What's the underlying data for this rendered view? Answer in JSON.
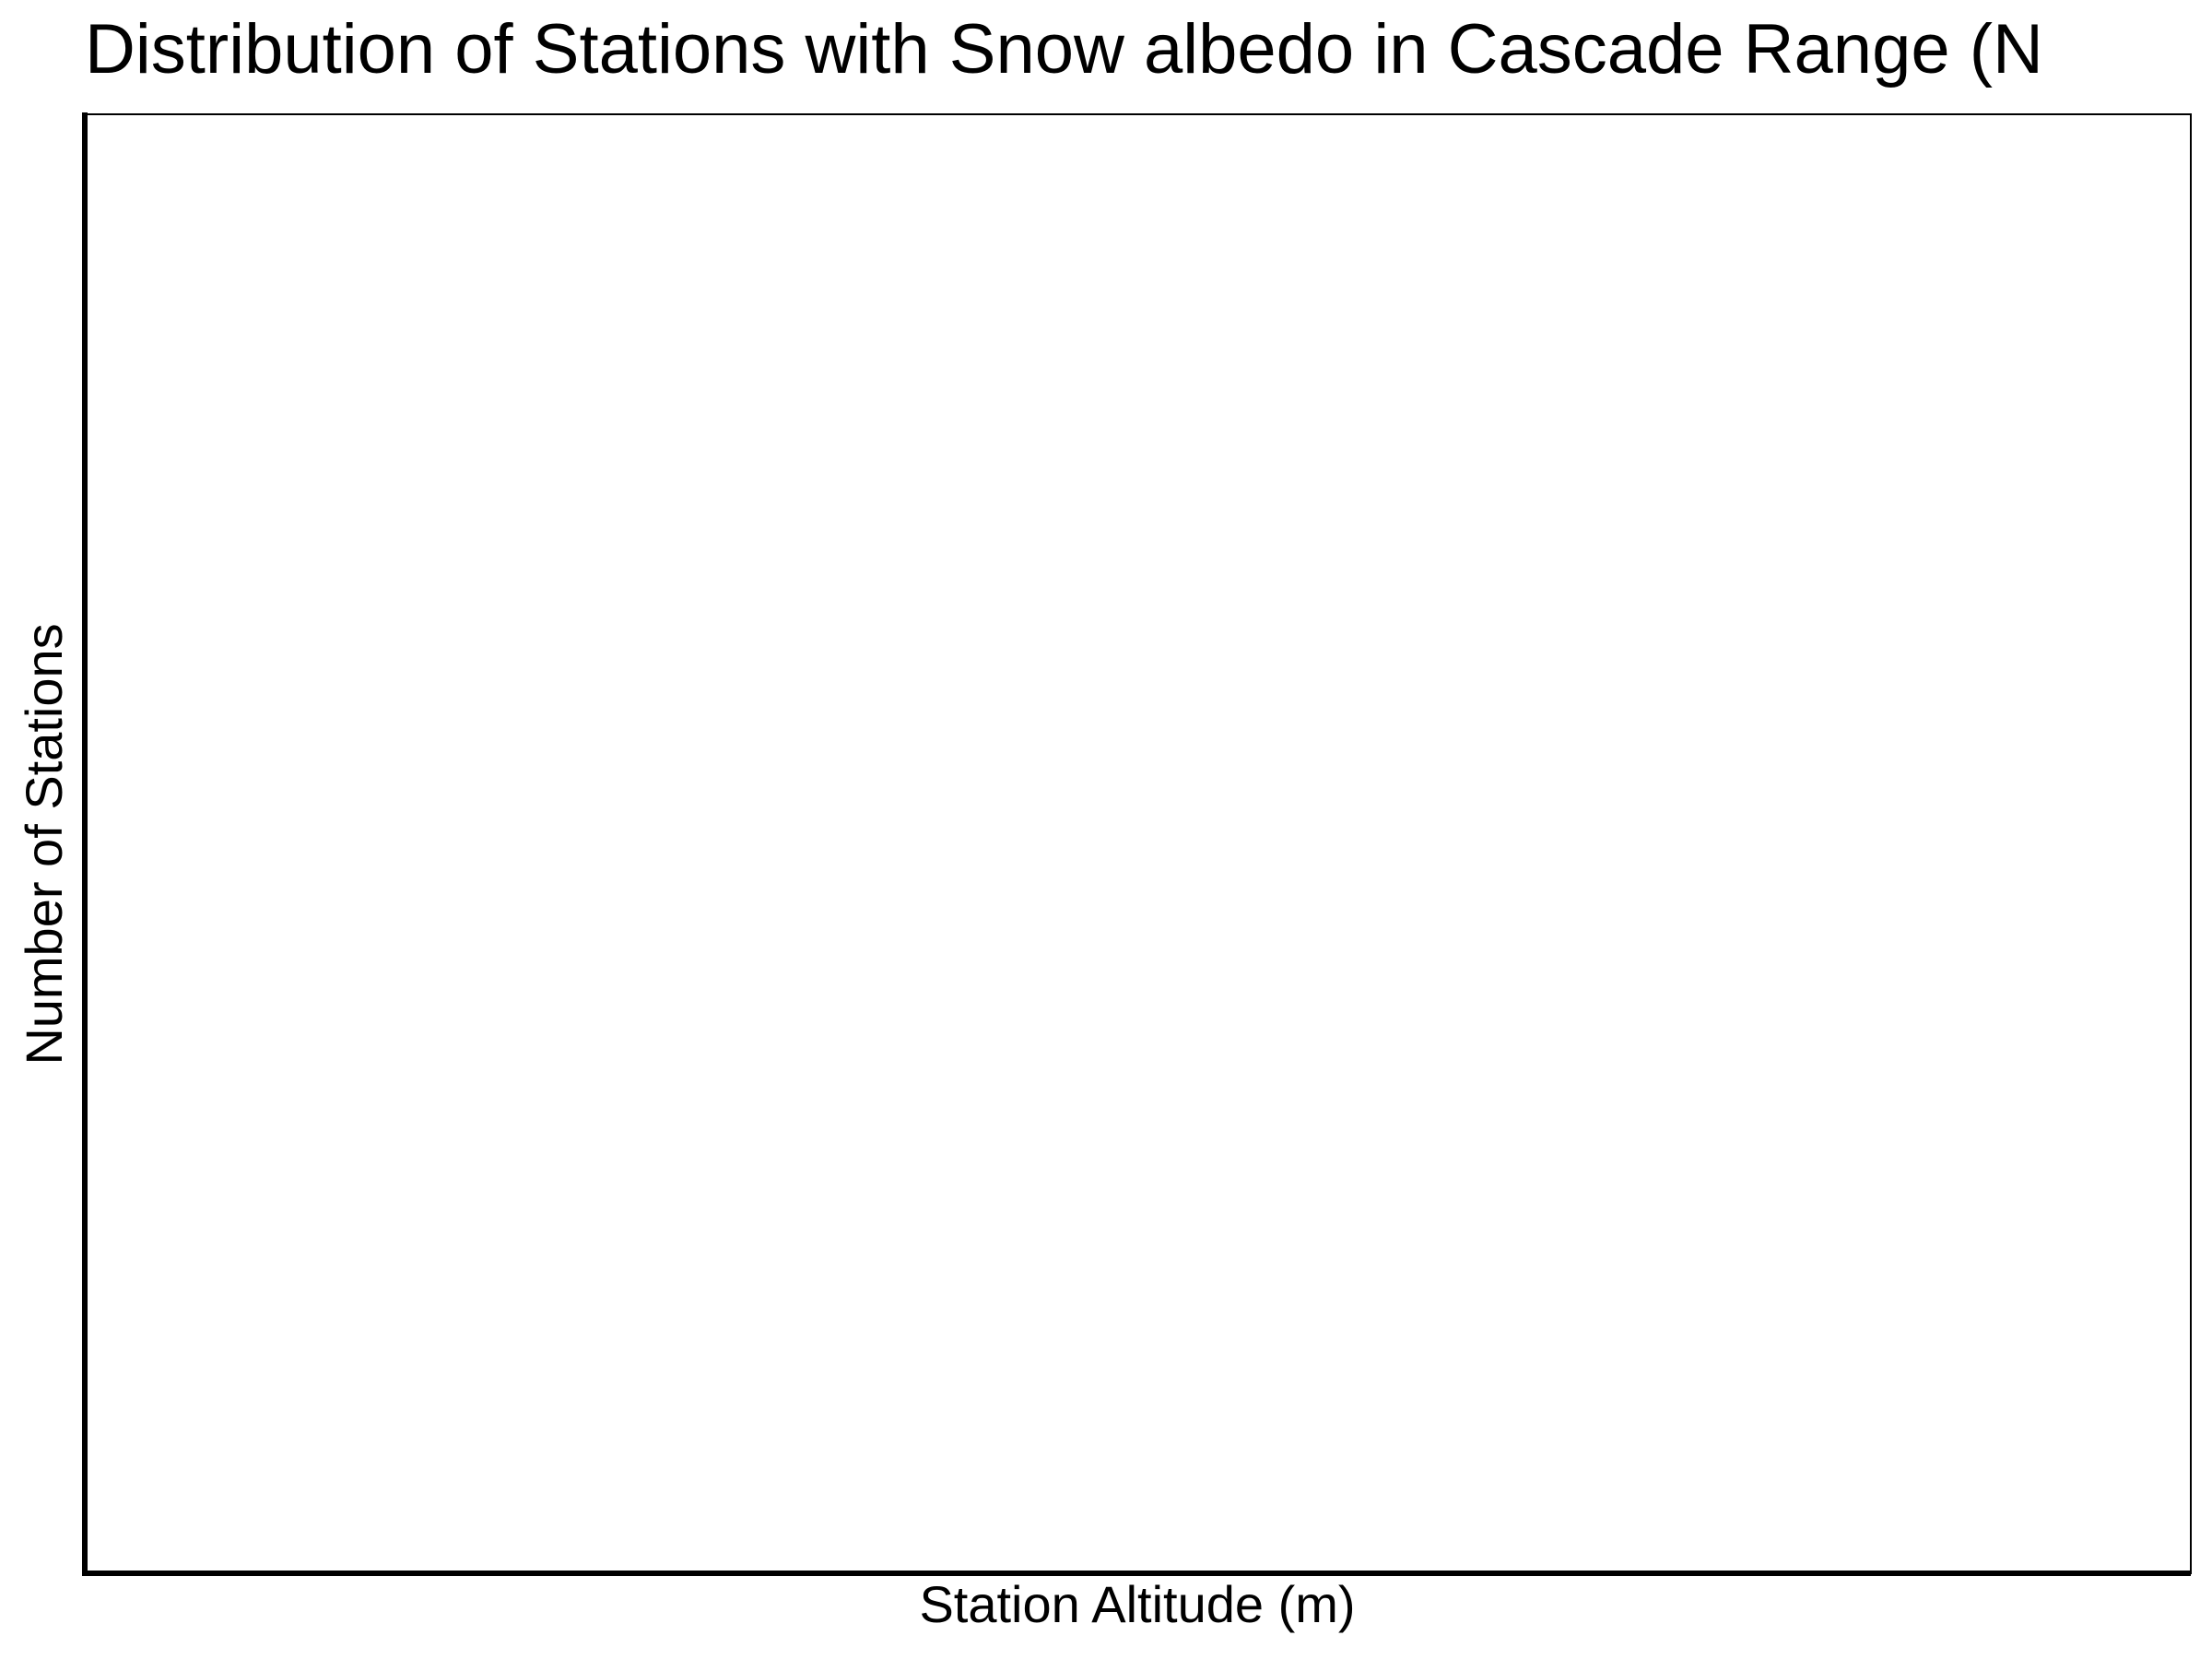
{
  "chart_data": {
    "type": "bar",
    "title": "Distribution of Stations with Snow albedo in Cascade Range (N",
    "xlabel": "Station Altitude (m)",
    "ylabel": "Number of Stations",
    "categories": [],
    "values": [],
    "grid": false,
    "legend": "none"
  },
  "colors": {
    "axis": "#000000",
    "background": "#ffffff"
  }
}
